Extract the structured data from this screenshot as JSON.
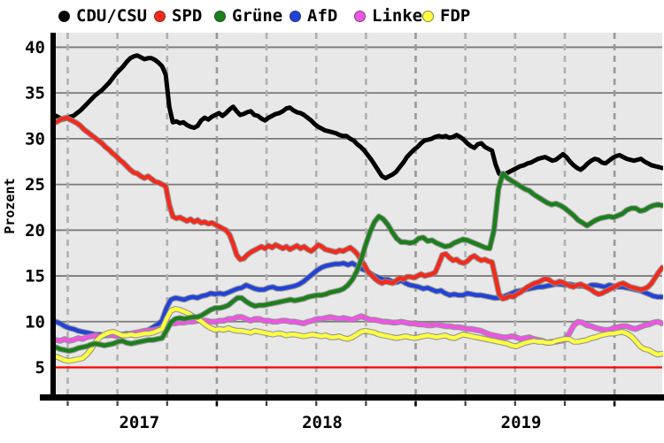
{
  "legend": {
    "items": [
      {
        "label": "CDU/CSU",
        "color": "#000000"
      },
      {
        "label": "SPD",
        "color": "#f5291b"
      },
      {
        "label": "Grüne",
        "color": "#1b7f1b"
      },
      {
        "label": "AfD",
        "color": "#2142d8"
      },
      {
        "label": "Linke",
        "color": "#ee55e4"
      },
      {
        "label": "FDP",
        "color": "#ffff42"
      }
    ]
  },
  "axes": {
    "y_label": "Prozent",
    "y_ticks": [
      5,
      10,
      15,
      20,
      25,
      30,
      35,
      40
    ],
    "x_tick_labels": [
      "2017",
      "2018",
      "2019"
    ]
  },
  "colors": {
    "plot_background": "#e8e8e8",
    "h_gridline": "#7a7a7a",
    "v_gridline": "#b0b0b0",
    "v_gridline_year": "#989898",
    "axis": "#000000",
    "threshold_line": "#ff0000",
    "line_halo": "#8c8c8c"
  },
  "chart_data": {
    "type": "line",
    "title": "",
    "xlabel": "",
    "ylabel": "Prozent",
    "ylim": [
      1.8,
      41.6
    ],
    "y_gridlines": [
      5,
      10,
      15,
      20,
      25,
      30,
      35,
      40
    ],
    "threshold_value": 5,
    "x_start": 2017.19,
    "x_end": 2020.24,
    "x_gridlines_start": 2017.25,
    "x_gridline_step": 0.25,
    "x_gridline_count": 12,
    "x_year_label_positions": [
      2017.61,
      2018.53,
      2019.53
    ],
    "legend_position": "top",
    "grid": true,
    "series": [
      {
        "name": "CDU/CSU",
        "color": "#000000",
        "values": [
          32.5,
          32.3,
          32.1,
          32.2,
          32.4,
          32.5,
          32.8,
          33.1,
          33.5,
          33.9,
          34.3,
          34.7,
          35.0,
          35.3,
          35.7,
          36.1,
          36.6,
          37.1,
          37.5,
          37.9,
          38.4,
          38.8,
          39.0,
          39.1,
          38.9,
          38.7,
          38.8,
          38.8,
          38.6,
          38.3,
          37.9,
          37.0,
          33.5,
          31.8,
          31.9,
          31.7,
          31.8,
          31.5,
          31.3,
          31.2,
          31.4,
          32.0,
          32.3,
          32.1,
          32.4,
          32.6,
          32.8,
          32.5,
          32.8,
          33.2,
          33.5,
          33.0,
          32.6,
          32.7,
          32.9,
          33.0,
          32.6,
          32.5,
          32.2,
          32.0,
          32.3,
          32.5,
          32.7,
          32.8,
          33.0,
          33.3,
          33.4,
          33.1,
          32.9,
          32.8,
          32.6,
          32.3,
          32.0,
          31.6,
          31.3,
          31.1,
          30.9,
          30.8,
          30.7,
          30.6,
          30.4,
          30.3,
          30.3,
          30.0,
          29.8,
          29.4,
          29.1,
          28.7,
          28.2,
          27.7,
          27.1,
          26.5,
          25.9,
          25.7,
          25.9,
          26.1,
          26.4,
          26.9,
          27.4,
          28.0,
          28.4,
          28.8,
          29.1,
          29.5,
          29.8,
          29.9,
          30.0,
          30.2,
          30.3,
          30.2,
          30.3,
          30.1,
          30.2,
          30.4,
          30.2,
          29.9,
          29.5,
          29.2,
          29.0,
          29.4,
          29.5,
          29.1,
          28.9,
          28.7,
          27.2,
          26.2,
          25.9,
          26.2,
          26.4,
          26.6,
          26.8,
          27.0,
          27.1,
          27.3,
          27.4,
          27.6,
          27.8,
          27.9,
          28.0,
          27.8,
          27.6,
          27.7,
          28.0,
          28.3,
          28.0,
          27.5,
          27.1,
          26.8,
          26.6,
          26.9,
          27.3,
          27.6,
          27.8,
          27.7,
          27.4,
          27.3,
          27.6,
          27.9,
          28.1,
          28.2,
          28.0,
          27.8,
          27.7,
          27.6,
          27.7,
          27.8,
          27.5,
          27.3,
          27.1,
          27.0,
          26.9,
          26.8
        ]
      },
      {
        "name": "SPD",
        "color": "#f5291b",
        "values": [
          31.8,
          32.0,
          32.2,
          32.3,
          32.1,
          31.9,
          31.7,
          31.4,
          31.0,
          30.7,
          30.4,
          30.1,
          29.8,
          29.5,
          29.1,
          28.8,
          28.4,
          28.1,
          27.7,
          27.4,
          27.0,
          26.6,
          26.3,
          26.2,
          25.9,
          25.7,
          25.9,
          25.6,
          25.3,
          25.2,
          25.0,
          24.8,
          22.8,
          21.5,
          21.3,
          21.4,
          21.2,
          21.0,
          21.2,
          20.9,
          21.1,
          20.8,
          20.9,
          20.7,
          20.8,
          20.6,
          20.4,
          20.2,
          20.0,
          19.5,
          18.5,
          17.3,
          16.8,
          16.9,
          17.3,
          17.6,
          17.8,
          18.0,
          18.2,
          18.0,
          18.3,
          18.1,
          18.4,
          18.2,
          18.0,
          18.2,
          17.9,
          18.1,
          18.3,
          18.0,
          18.2,
          17.9,
          17.7,
          18.0,
          18.4,
          18.2,
          17.9,
          17.8,
          17.7,
          17.6,
          17.8,
          17.7,
          17.9,
          18.1,
          17.8,
          17.4,
          16.8,
          16.2,
          15.5,
          15.1,
          14.7,
          14.4,
          14.2,
          14.4,
          14.3,
          14.2,
          14.5,
          14.8,
          14.6,
          14.9,
          14.9,
          14.8,
          15.0,
          15.2,
          15.0,
          15.1,
          15.2,
          15.4,
          16.3,
          17.3,
          17.4,
          17.0,
          16.7,
          16.8,
          16.5,
          16.4,
          16.6,
          17.0,
          17.2,
          16.9,
          16.7,
          16.8,
          16.6,
          16.5,
          14.8,
          13.0,
          12.5,
          12.6,
          12.8,
          12.7,
          13.0,
          13.2,
          13.5,
          13.8,
          14.0,
          14.2,
          14.3,
          14.5,
          14.7,
          14.6,
          14.3,
          14.2,
          14.4,
          14.3,
          14.1,
          13.9,
          13.8,
          14.0,
          14.1,
          13.9,
          13.7,
          13.5,
          13.2,
          13.0,
          13.1,
          13.3,
          13.5,
          13.7,
          13.9,
          14.1,
          14.2,
          14.0,
          13.8,
          13.7,
          13.6,
          13.5,
          13.6,
          13.8,
          14.2,
          14.8,
          15.4,
          15.9
        ]
      },
      {
        "name": "Grüne",
        "color": "#1b7f1b",
        "values": [
          7.2,
          7.0,
          6.9,
          6.8,
          6.9,
          7.1,
          7.2,
          7.3,
          7.5,
          7.6,
          7.5,
          7.4,
          7.5,
          7.6,
          7.8,
          7.9,
          7.7,
          7.6,
          7.7,
          7.8,
          7.9,
          8.0,
          8.0,
          8.1,
          8.2,
          9.0,
          9.9,
          10.3,
          10.4,
          10.3,
          10.4,
          10.5,
          10.5,
          10.7,
          11.0,
          11.3,
          11.5,
          11.5,
          11.6,
          11.8,
          12.2,
          12.6,
          12.6,
          12.2,
          11.9,
          11.7,
          11.8,
          11.8,
          11.9,
          12.0,
          12.1,
          12.2,
          12.3,
          12.4,
          12.3,
          12.4,
          12.5,
          12.7,
          12.8,
          12.9,
          12.9,
          13.0,
          13.2,
          13.3,
          13.4,
          13.6,
          14.0,
          14.6,
          15.5,
          16.8,
          18.4,
          19.8,
          20.9,
          21.5,
          21.2,
          20.6,
          19.8,
          19.1,
          18.7,
          18.7,
          18.6,
          18.7,
          19.1,
          19.2,
          18.8,
          18.9,
          18.6,
          18.4,
          18.2,
          18.3,
          18.6,
          18.8,
          19.0,
          18.9,
          18.7,
          18.5,
          18.3,
          18.1,
          18.0,
          20.0,
          24.5,
          26.2,
          25.7,
          25.4,
          25.1,
          24.8,
          24.5,
          24.3,
          23.9,
          23.6,
          23.3,
          23.0,
          22.8,
          22.9,
          22.7,
          22.4,
          22.0,
          21.6,
          21.1,
          20.8,
          20.5,
          20.8,
          21.1,
          21.3,
          21.4,
          21.5,
          21.4,
          21.6,
          21.8,
          22.2,
          22.4,
          22.4,
          22.1,
          22.2,
          22.5,
          22.7,
          22.8,
          22.7
        ]
      },
      {
        "name": "AfD",
        "color": "#2142d8",
        "values": [
          10.0,
          9.8,
          9.5,
          9.3,
          9.2,
          9.0,
          8.9,
          8.8,
          8.7,
          8.6,
          8.6,
          8.5,
          8.5,
          8.6,
          8.5,
          8.6,
          8.7,
          8.6,
          8.5,
          8.7,
          8.9,
          9.1,
          9.4,
          9.7,
          10.1,
          11.5,
          12.4,
          12.6,
          12.5,
          12.4,
          12.6,
          12.7,
          12.6,
          12.8,
          12.9,
          13.1,
          13.0,
          13.1,
          13.0,
          13.2,
          13.4,
          13.6,
          13.7,
          14.0,
          13.8,
          13.6,
          13.5,
          13.5,
          13.7,
          13.8,
          13.6,
          13.6,
          13.7,
          13.8,
          13.9,
          14.1,
          14.4,
          14.8,
          15.2,
          15.6,
          15.9,
          16.1,
          16.2,
          16.3,
          16.3,
          16.4,
          16.2,
          16.4,
          16.1,
          15.8,
          15.6,
          15.3,
          15.0,
          14.8,
          14.6,
          14.6,
          14.4,
          14.3,
          14.5,
          14.2,
          14.0,
          13.9,
          13.8,
          13.6,
          13.7,
          13.5,
          13.3,
          13.4,
          13.1,
          12.9,
          13.0,
          12.9,
          12.9,
          13.1,
          13.0,
          12.9,
          12.9,
          12.8,
          12.7,
          12.6,
          12.6,
          12.7,
          12.9,
          13.1,
          13.3,
          13.4,
          13.5,
          13.6,
          13.7,
          13.8,
          13.8,
          13.9,
          14.0,
          14.1,
          14.1,
          14.0,
          14.1,
          14.0,
          13.9,
          13.9,
          13.8,
          14.0,
          14.0,
          13.9,
          13.8,
          14.0,
          13.9,
          13.8,
          13.8,
          13.7,
          13.6,
          13.5,
          13.4,
          13.2,
          13.0,
          12.8,
          12.7,
          12.7
        ]
      },
      {
        "name": "Linke",
        "color": "#ee55e4",
        "values": [
          8.0,
          7.9,
          8.1,
          7.9,
          8.0,
          8.2,
          8.1,
          8.3,
          8.4,
          8.5,
          8.4,
          8.5,
          8.6,
          8.5,
          8.4,
          8.5,
          8.6,
          8.7,
          8.8,
          8.9,
          9.0,
          9.0,
          9.1,
          9.2,
          9.3,
          9.5,
          9.8,
          9.8,
          9.9,
          9.9,
          10.0,
          10.0,
          10.1,
          10.1,
          10.1,
          10.0,
          10.0,
          10.1,
          10.1,
          10.3,
          10.3,
          10.5,
          10.5,
          10.3,
          10.1,
          10.3,
          10.3,
          10.1,
          10.1,
          10.0,
          10.0,
          10.1,
          10.1,
          10.0,
          10.0,
          9.9,
          9.8,
          10.0,
          10.1,
          10.3,
          10.3,
          10.4,
          10.5,
          10.4,
          10.3,
          10.4,
          10.3,
          10.2,
          10.4,
          10.6,
          10.4,
          10.2,
          10.2,
          10.1,
          10.0,
          10.0,
          9.9,
          9.9,
          10.0,
          9.9,
          9.8,
          9.8,
          9.7,
          9.7,
          9.6,
          9.6,
          9.7,
          9.6,
          9.5,
          9.5,
          9.4,
          9.4,
          9.3,
          9.2,
          9.2,
          9.1,
          9.0,
          8.8,
          8.6,
          8.5,
          8.4,
          8.3,
          8.3,
          8.4,
          8.3,
          8.1,
          8.2,
          8.3,
          8.1,
          8.0,
          7.9,
          7.7,
          7.8,
          7.8,
          7.9,
          8.0,
          8.7,
          9.6,
          10.0,
          9.9,
          9.6,
          9.5,
          9.3,
          9.2,
          9.1,
          9.1,
          9.3,
          9.4,
          9.5,
          9.5,
          9.3,
          9.2,
          9.4,
          9.6,
          9.7,
          9.9,
          10.0,
          9.8
        ]
      },
      {
        "name": "FDP",
        "color": "#ffff42",
        "values": [
          6.2,
          6.0,
          5.8,
          5.7,
          5.8,
          5.9,
          6.0,
          6.4,
          7.0,
          7.8,
          8.3,
          8.6,
          8.8,
          8.9,
          8.7,
          8.5,
          8.5,
          8.6,
          8.5,
          8.6,
          8.7,
          8.7,
          8.8,
          9.0,
          9.2,
          10.3,
          11.2,
          11.4,
          11.3,
          11.1,
          10.9,
          10.6,
          10.3,
          10.0,
          9.6,
          9.3,
          9.1,
          9.2,
          9.1,
          9.3,
          9.1,
          9.0,
          9.0,
          8.9,
          8.8,
          9.0,
          8.9,
          8.8,
          8.7,
          8.6,
          8.7,
          8.7,
          8.5,
          8.6,
          8.6,
          8.5,
          8.4,
          8.5,
          8.6,
          8.5,
          8.4,
          8.5,
          8.3,
          8.3,
          8.4,
          8.2,
          8.1,
          8.3,
          8.6,
          8.9,
          9.0,
          8.9,
          8.8,
          8.6,
          8.5,
          8.4,
          8.3,
          8.2,
          8.3,
          8.4,
          8.3,
          8.2,
          8.3,
          8.4,
          8.5,
          8.4,
          8.3,
          8.4,
          8.5,
          8.3,
          8.2,
          8.4,
          8.6,
          8.5,
          8.4,
          8.3,
          8.2,
          8.1,
          8.0,
          7.9,
          7.8,
          7.7,
          7.6,
          7.4,
          7.3,
          7.5,
          7.7,
          7.8,
          7.9,
          7.8,
          7.8,
          7.7,
          7.7,
          7.9,
          8.0,
          8.1,
          8.1,
          7.8,
          7.8,
          7.9,
          8.0,
          8.2,
          8.3,
          8.5,
          8.6,
          8.7,
          8.7,
          8.8,
          8.9,
          8.7,
          8.4,
          7.9,
          7.3,
          7.0,
          6.9,
          6.6,
          6.4,
          6.5
        ]
      }
    ]
  }
}
